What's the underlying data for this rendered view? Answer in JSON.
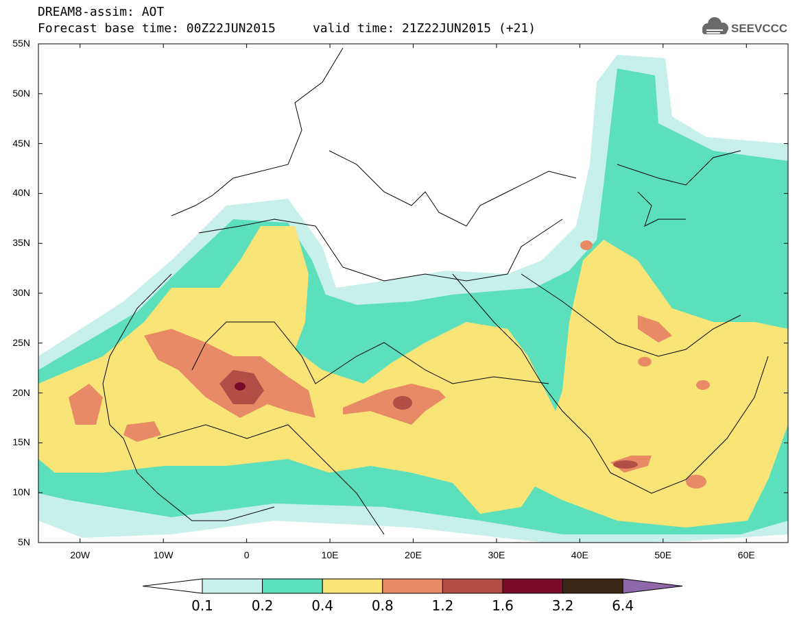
{
  "header": {
    "line1": "DREAM8-assim: AOT",
    "line2": "Forecast base time: 00Z22JUN2015     valid time: 21Z22JUN2015 (+21)"
  },
  "logo": {
    "text": "SEEVCCC",
    "icon": "cloud-icon"
  },
  "map": {
    "lat_range": [
      5,
      55
    ],
    "lon_range": [
      -25,
      65
    ],
    "lat_labels": [
      "55N",
      "50N",
      "45N",
      "40N",
      "35N",
      "30N",
      "25N",
      "20N",
      "15N",
      "10N",
      "5N"
    ],
    "lon_labels": [
      "20W",
      "10W",
      "0",
      "10E",
      "20E",
      "30E",
      "40E",
      "50E",
      "60E"
    ]
  },
  "colorbar": {
    "labels": [
      "0.1",
      "0.2",
      "0.4",
      "0.8",
      "1.2",
      "1.6",
      "3.2",
      "6.4"
    ],
    "colors": [
      "#ffffff",
      "#c8f0ea",
      "#5ce0bc",
      "#f8e477",
      "#e88a66",
      "#b24e46",
      "#7a0a2a",
      "#3c2616",
      "#8e68a8"
    ]
  },
  "colors": {
    "c01": "#c8f0ea",
    "c02": "#5ce0bc",
    "c04": "#f8e477",
    "c08": "#e88a66",
    "c12": "#b24e46",
    "c16": "#7a0a2a",
    "c32": "#3c2616",
    "c64": "#8e68a8"
  }
}
